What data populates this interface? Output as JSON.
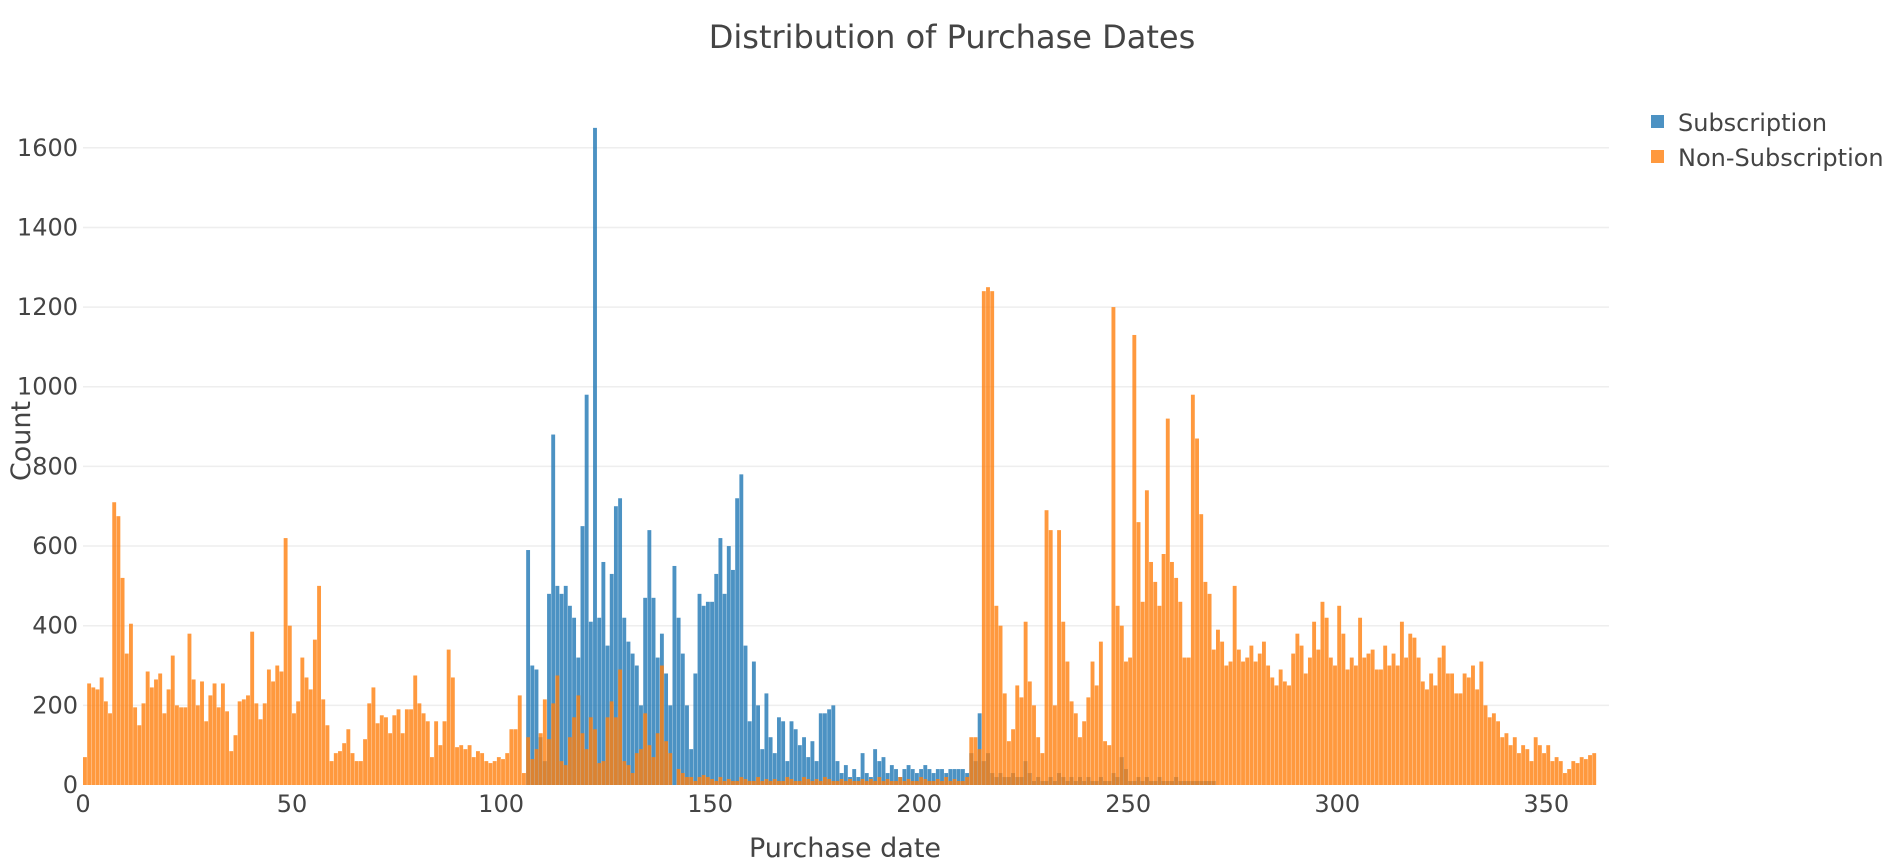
{
  "chart_data": {
    "type": "histogram",
    "title": "Distribution of Purchase Dates",
    "xlabel": "Purchase date",
    "ylabel": "Count",
    "xlim": [
      0,
      365
    ],
    "ylim": [
      0,
      1720
    ],
    "x_ticks": [
      0,
      50,
      100,
      150,
      200,
      250,
      300,
      350
    ],
    "y_ticks": [
      0,
      200,
      400,
      600,
      800,
      1000,
      1200,
      1400,
      1600
    ],
    "grid": true,
    "barmode": "overlay",
    "legend_position": "top-right",
    "bin_width": 1,
    "series": [
      {
        "name": "Subscription",
        "color": "#1f77b4",
        "opacity": 0.8,
        "bins": [
          [
            106,
            590
          ],
          [
            107,
            300
          ],
          [
            108,
            290
          ],
          [
            109,
            120
          ],
          [
            110,
            60
          ],
          [
            111,
            480
          ],
          [
            112,
            880
          ],
          [
            113,
            500
          ],
          [
            114,
            480
          ],
          [
            115,
            500
          ],
          [
            116,
            450
          ],
          [
            117,
            420
          ],
          [
            118,
            320
          ],
          [
            119,
            650
          ],
          [
            120,
            980
          ],
          [
            121,
            410
          ],
          [
            122,
            1650
          ],
          [
            123,
            420
          ],
          [
            124,
            560
          ],
          [
            125,
            350
          ],
          [
            126,
            530
          ],
          [
            127,
            700
          ],
          [
            128,
            720
          ],
          [
            129,
            420
          ],
          [
            130,
            360
          ],
          [
            131,
            330
          ],
          [
            132,
            300
          ],
          [
            133,
            200
          ],
          [
            134,
            470
          ],
          [
            135,
            640
          ],
          [
            136,
            470
          ],
          [
            137,
            320
          ],
          [
            138,
            380
          ],
          [
            139,
            280
          ],
          [
            140,
            200
          ],
          [
            141,
            550
          ],
          [
            142,
            420
          ],
          [
            143,
            330
          ],
          [
            144,
            200
          ],
          [
            145,
            90
          ],
          [
            146,
            280
          ],
          [
            147,
            480
          ],
          [
            148,
            450
          ],
          [
            149,
            460
          ],
          [
            150,
            460
          ],
          [
            151,
            530
          ],
          [
            152,
            620
          ],
          [
            153,
            480
          ],
          [
            154,
            600
          ],
          [
            155,
            540
          ],
          [
            156,
            720
          ],
          [
            157,
            780
          ],
          [
            158,
            350
          ],
          [
            159,
            160
          ],
          [
            160,
            310
          ],
          [
            161,
            200
          ],
          [
            162,
            90
          ],
          [
            163,
            230
          ],
          [
            164,
            120
          ],
          [
            165,
            80
          ],
          [
            166,
            170
          ],
          [
            167,
            160
          ],
          [
            168,
            60
          ],
          [
            169,
            160
          ],
          [
            170,
            140
          ],
          [
            171,
            100
          ],
          [
            172,
            120
          ],
          [
            173,
            70
          ],
          [
            174,
            110
          ],
          [
            175,
            60
          ],
          [
            176,
            180
          ],
          [
            177,
            180
          ],
          [
            178,
            190
          ],
          [
            179,
            200
          ],
          [
            180,
            60
          ],
          [
            181,
            30
          ],
          [
            182,
            50
          ],
          [
            183,
            20
          ],
          [
            184,
            40
          ],
          [
            185,
            20
          ],
          [
            186,
            80
          ],
          [
            187,
            30
          ],
          [
            188,
            20
          ],
          [
            189,
            90
          ],
          [
            190,
            60
          ],
          [
            191,
            70
          ],
          [
            192,
            30
          ],
          [
            193,
            50
          ],
          [
            194,
            40
          ],
          [
            195,
            20
          ],
          [
            196,
            40
          ],
          [
            197,
            50
          ],
          [
            198,
            40
          ],
          [
            199,
            30
          ],
          [
            200,
            40
          ],
          [
            201,
            50
          ],
          [
            202,
            40
          ],
          [
            203,
            30
          ],
          [
            204,
            40
          ],
          [
            205,
            40
          ],
          [
            206,
            30
          ],
          [
            207,
            40
          ],
          [
            208,
            40
          ],
          [
            209,
            40
          ],
          [
            210,
            40
          ],
          [
            211,
            30
          ],
          [
            212,
            80
          ],
          [
            213,
            60
          ],
          [
            214,
            180
          ],
          [
            215,
            60
          ],
          [
            216,
            80
          ],
          [
            217,
            30
          ],
          [
            218,
            20
          ],
          [
            219,
            30
          ],
          [
            220,
            20
          ],
          [
            221,
            20
          ],
          [
            222,
            30
          ],
          [
            223,
            20
          ],
          [
            224,
            20
          ],
          [
            225,
            60
          ],
          [
            226,
            30
          ],
          [
            227,
            10
          ],
          [
            228,
            20
          ],
          [
            229,
            10
          ],
          [
            230,
            10
          ],
          [
            231,
            20
          ],
          [
            232,
            10
          ],
          [
            233,
            30
          ],
          [
            234,
            20
          ],
          [
            235,
            10
          ],
          [
            236,
            20
          ],
          [
            237,
            10
          ],
          [
            238,
            20
          ],
          [
            239,
            10
          ],
          [
            240,
            20
          ],
          [
            241,
            10
          ],
          [
            242,
            10
          ],
          [
            243,
            20
          ],
          [
            244,
            10
          ],
          [
            245,
            10
          ],
          [
            246,
            30
          ],
          [
            247,
            20
          ],
          [
            248,
            70
          ],
          [
            249,
            40
          ],
          [
            250,
            10
          ],
          [
            251,
            10
          ],
          [
            252,
            20
          ],
          [
            253,
            10
          ],
          [
            254,
            20
          ],
          [
            255,
            10
          ],
          [
            256,
            10
          ],
          [
            257,
            20
          ],
          [
            258,
            10
          ],
          [
            259,
            10
          ],
          [
            260,
            10
          ],
          [
            261,
            20
          ],
          [
            262,
            10
          ],
          [
            263,
            10
          ],
          [
            264,
            10
          ],
          [
            265,
            10
          ],
          [
            266,
            10
          ],
          [
            267,
            10
          ],
          [
            268,
            10
          ],
          [
            269,
            10
          ],
          [
            270,
            10
          ]
        ]
      },
      {
        "name": "Non-Subscription",
        "color": "#ff7f0e",
        "opacity": 0.8,
        "values": [
          70,
          255,
          245,
          240,
          270,
          210,
          180,
          710,
          675,
          520,
          330,
          405,
          195,
          150,
          205,
          285,
          245,
          265,
          280,
          180,
          240,
          325,
          200,
          195,
          195,
          380,
          265,
          200,
          260,
          160,
          225,
          255,
          195,
          255,
          185,
          85,
          125,
          210,
          215,
          225,
          385,
          205,
          165,
          205,
          290,
          260,
          300,
          285,
          620,
          400,
          180,
          210,
          320,
          270,
          240,
          365,
          500,
          215,
          150,
          60,
          80,
          85,
          105,
          140,
          80,
          60,
          60,
          115,
          205,
          245,
          155,
          175,
          170,
          130,
          175,
          190,
          130,
          190,
          190,
          275,
          205,
          180,
          160,
          70,
          160,
          100,
          160,
          340,
          270,
          95,
          100,
          90,
          100,
          70,
          85,
          80,
          60,
          55,
          60,
          70,
          65,
          80,
          140,
          140,
          225,
          30,
          120,
          65,
          90,
          130,
          215,
          115,
          205,
          275,
          60,
          50,
          120,
          170,
          225,
          130,
          90,
          170,
          140,
          55,
          60,
          170,
          210,
          170,
          290,
          60,
          50,
          30,
          80,
          90,
          180,
          100,
          70,
          130,
          300,
          110,
          80,
          0,
          40,
          30,
          20,
          20,
          10,
          20,
          25,
          20,
          15,
          10,
          20,
          10,
          15,
          10,
          10,
          20,
          15,
          10,
          10,
          20,
          10,
          15,
          10,
          15,
          10,
          10,
          20,
          15,
          10,
          10,
          20,
          15,
          10,
          15,
          10,
          20,
          15,
          10,
          10,
          15,
          10,
          15,
          10,
          10,
          15,
          10,
          15,
          10,
          20,
          10,
          15,
          10,
          10,
          20,
          10,
          15,
          10,
          10,
          20,
          15,
          10,
          10,
          15,
          10,
          20,
          10,
          15,
          10,
          10,
          20,
          120,
          120,
          90,
          1240,
          1250,
          1240,
          450,
          400,
          230,
          110,
          140,
          250,
          220,
          410,
          260,
          200,
          120,
          80,
          690,
          640,
          200,
          640,
          410,
          310,
          210,
          180,
          120,
          160,
          220,
          310,
          250,
          360,
          110,
          100,
          1200,
          450,
          400,
          310,
          320,
          1130,
          660,
          460,
          740,
          560,
          510,
          450,
          580,
          920,
          560,
          520,
          460,
          320,
          320,
          980,
          870,
          680,
          510,
          480,
          340,
          390,
          360,
          300,
          310,
          500,
          340,
          310,
          320,
          350,
          310,
          330,
          360,
          300,
          270,
          250,
          290,
          260,
          250,
          330,
          380,
          350,
          280,
          320,
          410,
          340,
          460,
          420,
          320,
          300,
          450,
          380,
          290,
          320,
          300,
          420,
          320,
          330,
          340,
          290,
          290,
          350,
          300,
          330,
          300,
          410,
          320,
          380,
          370,
          320,
          260,
          240,
          280,
          250,
          320,
          350,
          280,
          280,
          230,
          230,
          280,
          270,
          300,
          240,
          310,
          200,
          170,
          180,
          160,
          120,
          130,
          100,
          120,
          80,
          100,
          90,
          60,
          120,
          100,
          80,
          100,
          60,
          70,
          60,
          30,
          40,
          60,
          55,
          70,
          65,
          75,
          80
        ]
      }
    ]
  }
}
